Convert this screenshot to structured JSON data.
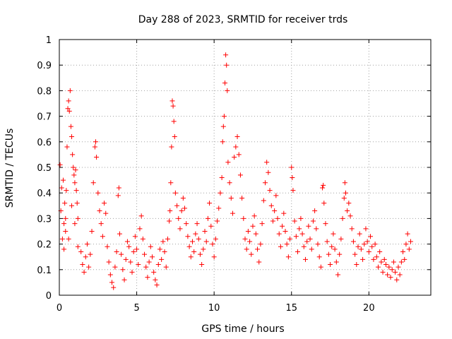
{
  "chart_data": {
    "type": "scatter",
    "title": "Day 288 of 2023, SRMTID for receiver trds",
    "xlabel": "GPS time / hours",
    "ylabel": "SRMTID / TECUs",
    "xlim": [
      0,
      24
    ],
    "ylim": [
      0,
      1
    ],
    "xticks": [
      0,
      5,
      10,
      15,
      20
    ],
    "xtick_labels": [
      "0",
      "5",
      "10",
      "15",
      "20"
    ],
    "yticks": [
      0,
      0.1,
      0.2,
      0.3,
      0.4,
      0.5,
      0.6,
      0.7,
      0.8,
      0.9,
      1
    ],
    "ytick_labels": [
      "0",
      "0.1",
      "0.2",
      "0.3",
      "0.4",
      "0.5",
      "0.6",
      "0.7",
      "0.8",
      "0.9",
      "1"
    ],
    "grid": true,
    "marker": "+",
    "color": "#ff0000",
    "series": [
      {
        "name": "SRMTID",
        "points": [
          [
            0.05,
            0.51
          ],
          [
            0.1,
            0.33
          ],
          [
            0.15,
            0.42
          ],
          [
            0.2,
            0.22
          ],
          [
            0.25,
            0.45
          ],
          [
            0.3,
            0.28
          ],
          [
            0.35,
            0.36
          ],
          [
            0.4,
            0.25
          ],
          [
            0.45,
            0.41
          ],
          [
            0.5,
            0.58
          ],
          [
            0.55,
            0.73
          ],
          [
            0.6,
            0.76
          ],
          [
            0.65,
            0.72
          ],
          [
            0.7,
            0.8
          ],
          [
            0.75,
            0.66
          ],
          [
            0.8,
            0.62
          ],
          [
            0.85,
            0.55
          ],
          [
            0.9,
            0.5
          ],
          [
            0.95,
            0.47
          ],
          [
            1.0,
            0.44
          ],
          [
            1.05,
            0.49
          ],
          [
            1.1,
            0.41
          ],
          [
            1.15,
            0.36
          ],
          [
            1.2,
            0.3
          ],
          [
            0.3,
            0.18
          ],
          [
            0.4,
            0.3
          ],
          [
            0.6,
            0.22
          ],
          [
            0.8,
            0.35
          ],
          [
            1.0,
            0.28
          ],
          [
            1.2,
            0.19
          ],
          [
            1.4,
            0.17
          ],
          [
            1.5,
            0.12
          ],
          [
            1.6,
            0.09
          ],
          [
            1.7,
            0.15
          ],
          [
            1.8,
            0.2
          ],
          [
            1.9,
            0.11
          ],
          [
            2.0,
            0.16
          ],
          [
            2.1,
            0.25
          ],
          [
            2.2,
            0.44
          ],
          [
            2.3,
            0.58
          ],
          [
            2.35,
            0.6
          ],
          [
            2.4,
            0.54
          ],
          [
            2.5,
            0.4
          ],
          [
            2.6,
            0.33
          ],
          [
            2.7,
            0.28
          ],
          [
            2.8,
            0.23
          ],
          [
            2.9,
            0.36
          ],
          [
            3.0,
            0.32
          ],
          [
            3.1,
            0.19
          ],
          [
            3.2,
            0.13
          ],
          [
            3.3,
            0.08
          ],
          [
            3.4,
            0.05
          ],
          [
            3.5,
            0.03
          ],
          [
            3.6,
            0.11
          ],
          [
            3.7,
            0.17
          ],
          [
            3.8,
            0.39
          ],
          [
            3.85,
            0.42
          ],
          [
            3.9,
            0.24
          ],
          [
            4.0,
            0.16
          ],
          [
            4.1,
            0.1
          ],
          [
            4.2,
            0.06
          ],
          [
            4.3,
            0.14
          ],
          [
            4.4,
            0.21
          ],
          [
            4.5,
            0.19
          ],
          [
            4.6,
            0.13
          ],
          [
            4.7,
            0.09
          ],
          [
            4.8,
            0.17
          ],
          [
            4.9,
            0.23
          ],
          [
            5.0,
            0.18
          ],
          [
            5.1,
            0.12
          ],
          [
            5.2,
            0.26
          ],
          [
            5.3,
            0.31
          ],
          [
            5.4,
            0.22
          ],
          [
            5.5,
            0.16
          ],
          [
            5.6,
            0.11
          ],
          [
            5.7,
            0.07
          ],
          [
            5.8,
            0.13
          ],
          [
            5.9,
            0.19
          ],
          [
            6.0,
            0.15
          ],
          [
            6.1,
            0.09
          ],
          [
            6.2,
            0.06
          ],
          [
            6.3,
            0.04
          ],
          [
            6.4,
            0.12
          ],
          [
            6.5,
            0.18
          ],
          [
            6.6,
            0.14
          ],
          [
            6.7,
            0.21
          ],
          [
            6.8,
            0.17
          ],
          [
            6.9,
            0.11
          ],
          [
            7.0,
            0.22
          ],
          [
            7.1,
            0.29
          ],
          [
            7.15,
            0.33
          ],
          [
            7.2,
            0.44
          ],
          [
            7.25,
            0.58
          ],
          [
            7.3,
            0.76
          ],
          [
            7.35,
            0.74
          ],
          [
            7.4,
            0.68
          ],
          [
            7.45,
            0.62
          ],
          [
            7.5,
            0.4
          ],
          [
            7.6,
            0.35
          ],
          [
            7.7,
            0.3
          ],
          [
            7.8,
            0.26
          ],
          [
            7.9,
            0.33
          ],
          [
            8.0,
            0.38
          ],
          [
            8.1,
            0.34
          ],
          [
            8.2,
            0.28
          ],
          [
            8.3,
            0.23
          ],
          [
            8.4,
            0.19
          ],
          [
            8.5,
            0.15
          ],
          [
            8.6,
            0.21
          ],
          [
            8.7,
            0.17
          ],
          [
            8.8,
            0.24
          ],
          [
            8.9,
            0.28
          ],
          [
            9.0,
            0.22
          ],
          [
            9.1,
            0.16
          ],
          [
            9.2,
            0.12
          ],
          [
            9.3,
            0.18
          ],
          [
            9.4,
            0.25
          ],
          [
            9.5,
            0.21
          ],
          [
            9.6,
            0.3
          ],
          [
            9.7,
            0.36
          ],
          [
            9.8,
            0.27
          ],
          [
            9.9,
            0.2
          ],
          [
            10.0,
            0.15
          ],
          [
            10.1,
            0.22
          ],
          [
            10.2,
            0.29
          ],
          [
            10.3,
            0.34
          ],
          [
            10.4,
            0.4
          ],
          [
            10.5,
            0.46
          ],
          [
            10.55,
            0.6
          ],
          [
            10.6,
            0.66
          ],
          [
            10.65,
            0.7
          ],
          [
            10.7,
            0.83
          ],
          [
            10.75,
            0.94
          ],
          [
            10.8,
            0.9
          ],
          [
            10.85,
            0.8
          ],
          [
            10.9,
            0.52
          ],
          [
            11.0,
            0.44
          ],
          [
            11.1,
            0.38
          ],
          [
            11.2,
            0.32
          ],
          [
            11.3,
            0.54
          ],
          [
            11.4,
            0.58
          ],
          [
            11.5,
            0.62
          ],
          [
            11.6,
            0.55
          ],
          [
            11.7,
            0.47
          ],
          [
            11.8,
            0.38
          ],
          [
            11.9,
            0.3
          ],
          [
            12.0,
            0.22
          ],
          [
            12.1,
            0.18
          ],
          [
            12.2,
            0.25
          ],
          [
            12.3,
            0.21
          ],
          [
            12.4,
            0.16
          ],
          [
            12.5,
            0.27
          ],
          [
            12.6,
            0.31
          ],
          [
            12.7,
            0.24
          ],
          [
            12.8,
            0.18
          ],
          [
            12.9,
            0.13
          ],
          [
            13.0,
            0.2
          ],
          [
            13.1,
            0.28
          ],
          [
            13.2,
            0.37
          ],
          [
            13.3,
            0.44
          ],
          [
            13.4,
            0.52
          ],
          [
            13.5,
            0.48
          ],
          [
            13.6,
            0.41
          ],
          [
            13.7,
            0.35
          ],
          [
            13.8,
            0.29
          ],
          [
            13.9,
            0.33
          ],
          [
            14.0,
            0.39
          ],
          [
            14.1,
            0.3
          ],
          [
            14.2,
            0.24
          ],
          [
            14.3,
            0.19
          ],
          [
            14.4,
            0.27
          ],
          [
            14.5,
            0.32
          ],
          [
            14.6,
            0.25
          ],
          [
            14.7,
            0.2
          ],
          [
            14.8,
            0.15
          ],
          [
            14.9,
            0.22
          ],
          [
            15.0,
            0.5
          ],
          [
            15.05,
            0.46
          ],
          [
            15.1,
            0.41
          ],
          [
            15.2,
            0.29
          ],
          [
            15.3,
            0.23
          ],
          [
            15.4,
            0.17
          ],
          [
            15.5,
            0.26
          ],
          [
            15.6,
            0.3
          ],
          [
            15.7,
            0.24
          ],
          [
            15.8,
            0.19
          ],
          [
            15.9,
            0.14
          ],
          [
            16.0,
            0.21
          ],
          [
            16.1,
            0.27
          ],
          [
            16.2,
            0.22
          ],
          [
            16.3,
            0.18
          ],
          [
            16.4,
            0.29
          ],
          [
            16.5,
            0.33
          ],
          [
            16.6,
            0.26
          ],
          [
            16.7,
            0.2
          ],
          [
            16.8,
            0.15
          ],
          [
            16.9,
            0.11
          ],
          [
            17.0,
            0.42
          ],
          [
            17.05,
            0.43
          ],
          [
            17.1,
            0.36
          ],
          [
            17.2,
            0.28
          ],
          [
            17.3,
            0.21
          ],
          [
            17.4,
            0.16
          ],
          [
            17.5,
            0.12
          ],
          [
            17.6,
            0.19
          ],
          [
            17.7,
            0.24
          ],
          [
            17.8,
            0.18
          ],
          [
            17.9,
            0.13
          ],
          [
            18.0,
            0.08
          ],
          [
            18.1,
            0.16
          ],
          [
            18.2,
            0.22
          ],
          [
            18.3,
            0.3
          ],
          [
            18.4,
            0.38
          ],
          [
            18.45,
            0.44
          ],
          [
            18.5,
            0.4
          ],
          [
            18.6,
            0.33
          ],
          [
            18.7,
            0.36
          ],
          [
            18.8,
            0.31
          ],
          [
            18.9,
            0.26
          ],
          [
            19.0,
            0.21
          ],
          [
            19.1,
            0.16
          ],
          [
            19.2,
            0.12
          ],
          [
            19.3,
            0.19
          ],
          [
            19.4,
            0.24
          ],
          [
            19.5,
            0.18
          ],
          [
            19.6,
            0.14
          ],
          [
            19.7,
            0.2
          ],
          [
            19.8,
            0.26
          ],
          [
            19.9,
            0.21
          ],
          [
            20.0,
            0.17
          ],
          [
            20.1,
            0.23
          ],
          [
            20.2,
            0.19
          ],
          [
            20.3,
            0.14
          ],
          [
            20.4,
            0.2
          ],
          [
            20.5,
            0.15
          ],
          [
            20.6,
            0.11
          ],
          [
            20.7,
            0.17
          ],
          [
            20.8,
            0.13
          ],
          [
            20.9,
            0.09
          ],
          [
            21.0,
            0.14
          ],
          [
            21.1,
            0.12
          ],
          [
            21.2,
            0.08
          ],
          [
            21.3,
            0.11
          ],
          [
            21.4,
            0.07
          ],
          [
            21.5,
            0.1
          ],
          [
            21.6,
            0.13
          ],
          [
            21.7,
            0.09
          ],
          [
            21.8,
            0.06
          ],
          [
            21.9,
            0.11
          ],
          [
            22.0,
            0.08
          ],
          [
            22.1,
            0.13
          ],
          [
            22.2,
            0.17
          ],
          [
            22.3,
            0.14
          ],
          [
            22.4,
            0.2
          ],
          [
            22.5,
            0.24
          ],
          [
            22.6,
            0.18
          ],
          [
            22.7,
            0.21
          ]
        ]
      }
    ]
  }
}
